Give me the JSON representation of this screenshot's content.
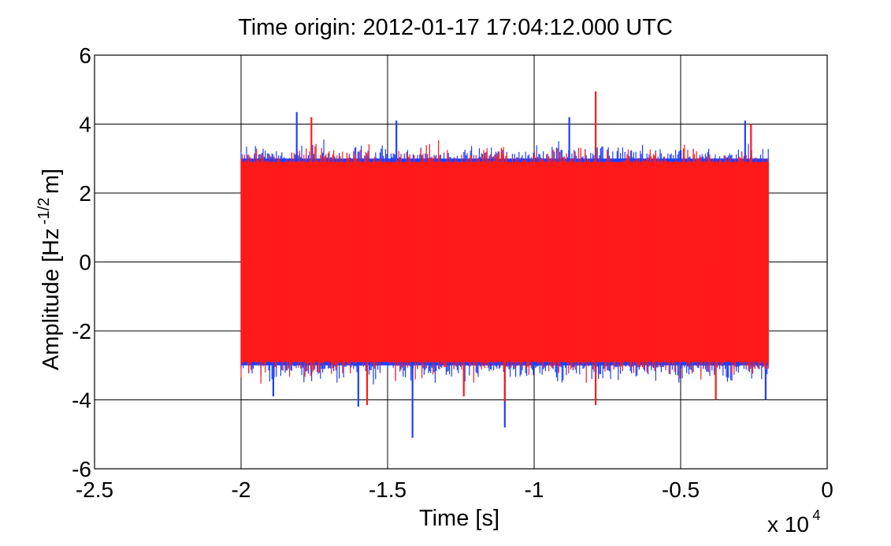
{
  "chart_data": {
    "type": "line",
    "title": "Time origin: 2012-01-17 17:04:12.000 UTC",
    "xlabel": "Time  [s]",
    "ylabel": {
      "main": "Amplitude  [Hz",
      "superscript": "-1/2",
      "unit": " m]"
    },
    "x_multiplier": {
      "base": "x 10",
      "exponent": "4"
    },
    "xlim": [
      -2.5,
      0
    ],
    "ylim": [
      -6,
      6
    ],
    "x_tick_labels": [
      "-2.5",
      "-2",
      "-1.5",
      "-1",
      "-0.5",
      "0"
    ],
    "y_tick_labels": [
      "-6",
      "-4",
      "-2",
      "0",
      "2",
      "4",
      "6"
    ],
    "grid": true,
    "series": [
      {
        "color": "#1f3fff",
        "x_range": [
          -2.0,
          -0.2
        ],
        "typical_envelope": [
          -3.0,
          3.0
        ],
        "peaks": [
          {
            "x": -1.415,
            "y": -5.1
          },
          {
            "x": -1.1,
            "y": -4.8
          },
          {
            "x": -1.81,
            "y": 4.35
          },
          {
            "x": -1.47,
            "y": 4.1
          },
          {
            "x": -0.88,
            "y": 4.2
          },
          {
            "x": -0.28,
            "y": 4.1
          },
          {
            "x": -1.89,
            "y": -3.9
          },
          {
            "x": -0.21,
            "y": -4.0
          },
          {
            "x": -1.6,
            "y": -4.2
          }
        ]
      },
      {
        "color": "#ff1a1a",
        "x_range": [
          -2.0,
          -0.2
        ],
        "typical_envelope": [
          -2.9,
          2.9
        ],
        "peaks": [
          {
            "x": -0.79,
            "y": 4.95
          },
          {
            "x": -1.76,
            "y": 4.2
          },
          {
            "x": -0.26,
            "y": 4.0
          },
          {
            "x": -1.57,
            "y": -4.15
          },
          {
            "x": -0.79,
            "y": -4.15
          },
          {
            "x": -1.1,
            "y": -4.05
          },
          {
            "x": -0.38,
            "y": -4.0
          },
          {
            "x": -1.24,
            "y": -3.9
          }
        ]
      }
    ]
  }
}
